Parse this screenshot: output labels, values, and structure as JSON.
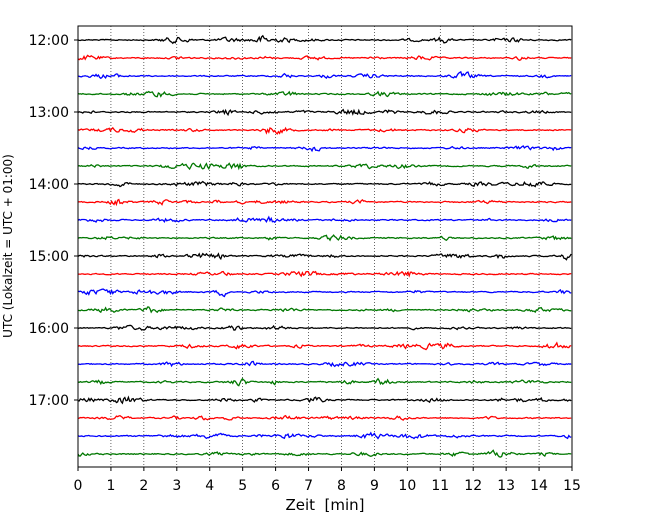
{
  "chart_data": {
    "type": "line",
    "title": "",
    "xlabel": "Zeit  [min]",
    "ylabel": "UTC (Lokalzeit = UTC + 01:00)",
    "xlim": [
      0,
      15
    ],
    "x_ticks": [
      "0",
      "1",
      "2",
      "3",
      "4",
      "5",
      "6",
      "7",
      "8",
      "9",
      "10",
      "11",
      "12",
      "13",
      "14",
      "15"
    ],
    "y_tick_labels": [
      "12:00",
      "13:00",
      "14:00",
      "15:00",
      "16:00",
      "17:00"
    ],
    "trace_interval_min": 15,
    "trace_start": "12:00",
    "trace_colors": [
      "#000000",
      "#ff0000",
      "#0000ff",
      "#007700"
    ],
    "trace_count": 24,
    "grid_x": true,
    "grid_style": "dotted"
  }
}
